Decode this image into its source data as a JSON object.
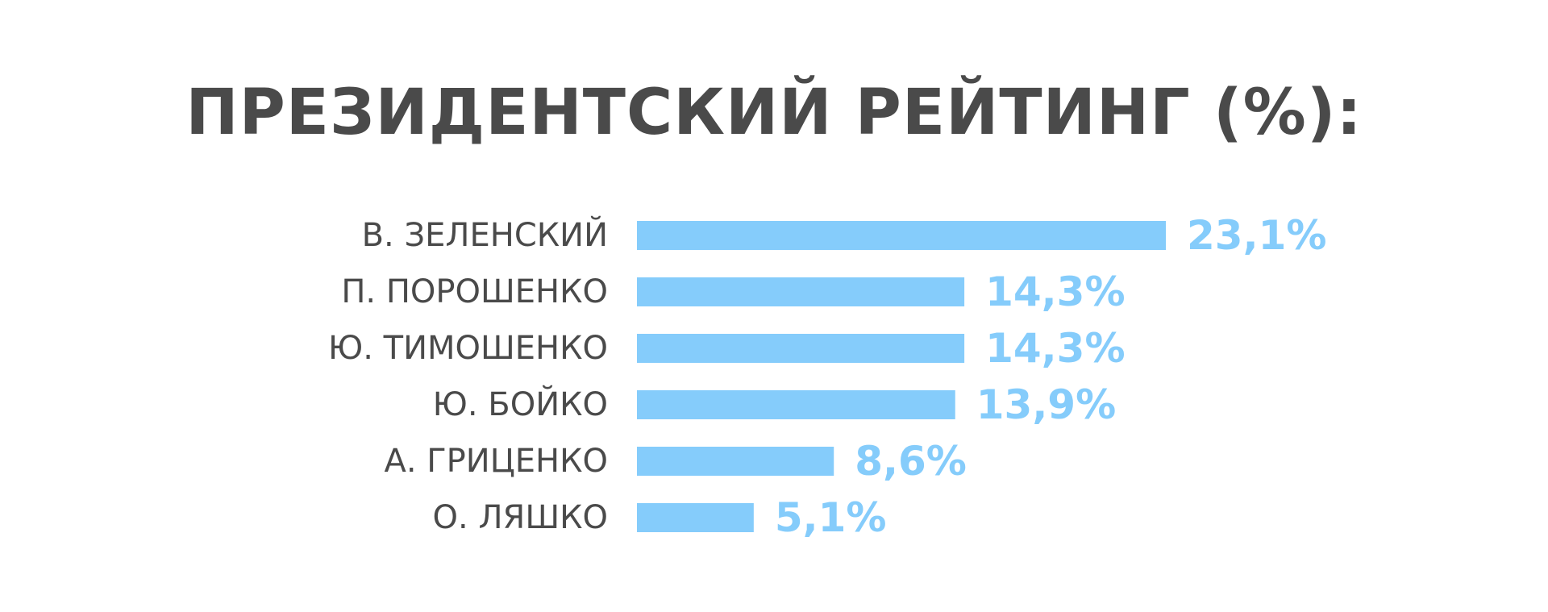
{
  "chart_data": {
    "type": "bar",
    "orientation": "horizontal",
    "title": "ПРЕЗИДЕНТСКИЙ РЕЙТИНГ (%):",
    "categories": [
      "В. ЗЕЛЕНСКИЙ",
      "П. ПОРОШЕНКО",
      "Ю. ТИМОШЕНКО",
      "Ю. БОЙКО",
      "А. ГРИЦЕНКО",
      "О. ЛЯШКО"
    ],
    "values": [
      23.1,
      14.3,
      14.3,
      13.9,
      8.6,
      5.1
    ],
    "value_labels": [
      "23,1%",
      "14,3%",
      "14,3%",
      "13,9%",
      "8,6%",
      "5,1%"
    ],
    "xlim": [
      0,
      23.1
    ],
    "grid": false,
    "legend": "none",
    "colors": {
      "bar": "#85ccfb",
      "value_text": "#85ccfb",
      "category_text": "#4a4a4a",
      "title_text": "#4a4a4a",
      "background": "#ffffff"
    }
  }
}
